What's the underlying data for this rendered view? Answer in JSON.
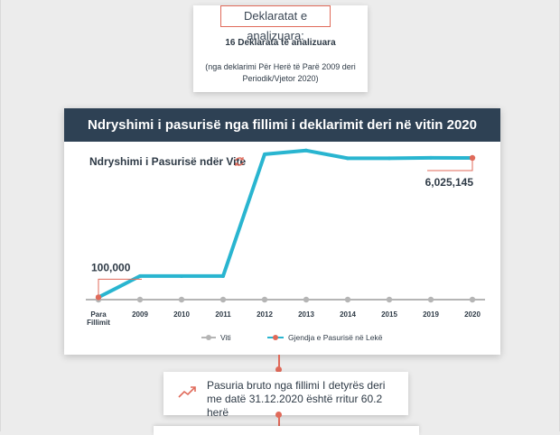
{
  "top_card": {
    "tag": "Deklaratat e analizuara:",
    "count": "16 Deklarata të analizuara",
    "note": "(nga deklarimi Për Herë të Parë 2009 deri Periodik/Vjetor 2020)"
  },
  "header": {
    "title": "Ndryshimi i pasurisë nga fillimi i deklarimit deri në vitin 2020"
  },
  "chart_data": {
    "type": "line",
    "title": "Ndryshimi i Pasurisë ndër Vite",
    "categories": [
      "Para Fillimit",
      "2009",
      "2010",
      "2011",
      "2012",
      "2013",
      "2014",
      "2015",
      "2019",
      "2020"
    ],
    "series": [
      {
        "name": "Viti",
        "values": [
          0,
          0,
          0,
          0,
          0,
          0,
          0,
          0,
          0,
          0
        ],
        "color": "#b5b5b5"
      },
      {
        "name": "Gjendja e Pasurisë në Lekë",
        "values": [
          100000,
          1000000,
          1000000,
          1000000,
          6180000,
          6340000,
          6010000,
          6010000,
          6030000,
          6025145
        ],
        "color": "#29b5d0"
      }
    ],
    "ylim": [
      0,
      6600000
    ],
    "legend": "bottom",
    "annotations": [
      {
        "category": "Para Fillimit",
        "label": "100,000"
      },
      {
        "category": "2020",
        "label": "6,025,145"
      }
    ],
    "accent": "#e06a5a"
  },
  "bottom_card": {
    "icon": "trend-up-icon",
    "text": "Pasuria bruto nga fillimi I detyrës deri me datë 31.12.2020 është rritur 60.2 herë"
  }
}
